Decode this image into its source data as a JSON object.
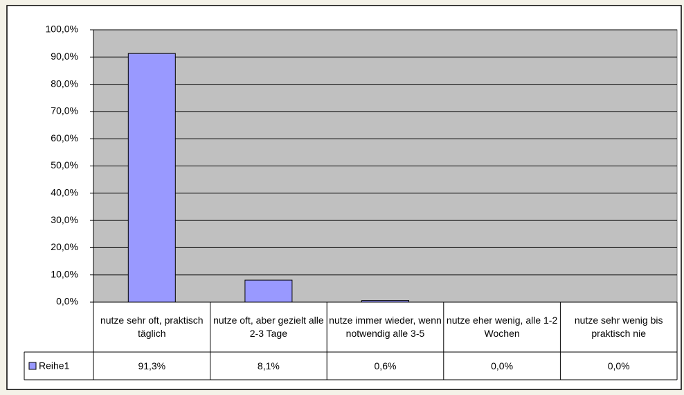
{
  "chart_data": {
    "type": "bar",
    "categories": [
      "nutze sehr oft, praktisch täglich",
      "nutze oft, aber gezielt alle 2-3 Tage",
      "nutze immer wieder, wenn notwendig alle 3-5",
      "nutze eher wenig, alle 1-2 Wochen",
      "nutze sehr wenig bis praktisch nie"
    ],
    "series": [
      {
        "name": "Reihe1",
        "color": "#9999ff",
        "values": [
          91.3,
          8.1,
          0.6,
          0,
          0
        ],
        "value_labels": [
          "91,3%",
          "8,1%",
          "0,6%",
          "0,0%",
          "0,0%"
        ]
      }
    ],
    "ylim": [
      0,
      100
    ],
    "yticks": [
      {
        "value": 0,
        "label": "0,0%"
      },
      {
        "value": 10,
        "label": "10,0%"
      },
      {
        "value": 20,
        "label": "20,0%"
      },
      {
        "value": 30,
        "label": "30,0%"
      },
      {
        "value": 40,
        "label": "40,0%"
      },
      {
        "value": 50,
        "label": "50,0%"
      },
      {
        "value": 60,
        "label": "60,0%"
      },
      {
        "value": 70,
        "label": "70,0%"
      },
      {
        "value": 80,
        "label": "80,0%"
      },
      {
        "value": 90,
        "label": "90,0%"
      },
      {
        "value": 100,
        "label": "100,0%"
      }
    ],
    "grid": true,
    "plot_background": "#c0c0c0"
  }
}
